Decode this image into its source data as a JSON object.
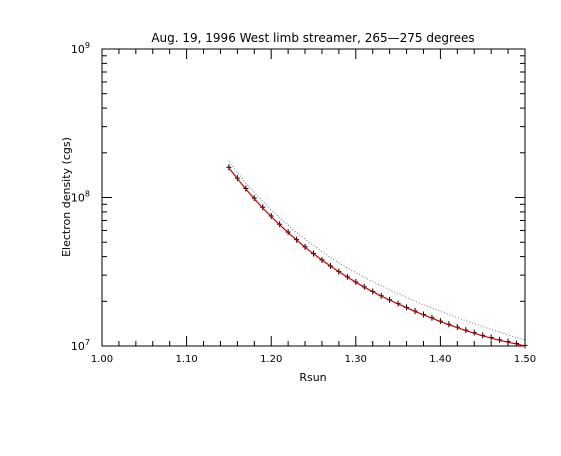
{
  "chart_data": {
    "type": "scatter",
    "title": "Aug. 19, 1996 West limb streamer, 265—275 degrees",
    "xlabel": "Rsun",
    "ylabel": "Electron density (cgs)",
    "xlim": [
      1.0,
      1.5
    ],
    "ylim": [
      10000000.0,
      1000000000.0
    ],
    "yscale": "log",
    "x_ticks": [
      {
        "value": 1.0,
        "label": "1.00"
      },
      {
        "value": 1.1,
        "label": "1.10"
      },
      {
        "value": 1.2,
        "label": "1.20"
      },
      {
        "value": 1.3,
        "label": "1.30"
      },
      {
        "value": 1.4,
        "label": "1.40"
      },
      {
        "value": 1.5,
        "label": "1.50"
      }
    ],
    "y_ticks": [
      {
        "value": 10000000.0,
        "base": "10",
        "exp": "7"
      },
      {
        "value": 100000000.0,
        "base": "10",
        "exp": "8"
      },
      {
        "value": 1000000000.0,
        "base": "10",
        "exp": "9"
      }
    ],
    "grid": false,
    "series": [
      {
        "color": "#000000",
        "marker": "plus",
        "x": [
          1.15,
          1.16,
          1.17,
          1.18,
          1.19,
          1.2,
          1.21,
          1.22,
          1.23,
          1.24,
          1.25,
          1.26,
          1.27,
          1.28,
          1.29,
          1.3,
          1.31,
          1.32,
          1.33,
          1.34,
          1.35,
          1.36,
          1.37,
          1.38,
          1.39,
          1.4,
          1.41,
          1.42,
          1.43,
          1.44,
          1.45,
          1.46,
          1.47,
          1.48,
          1.49,
          1.5
        ],
        "y": [
          160000000.0,
          135000000.0,
          115000000.0,
          99000000.0,
          86000000.0,
          75000000.0,
          66000000.0,
          58500000.0,
          52000000.0,
          46500000.0,
          42000000.0,
          38000000.0,
          34600000.0,
          31700000.0,
          29200000.0,
          27000000.0,
          25000000.0,
          23300000.0,
          21800000.0,
          20500000.0,
          19300000.0,
          18200000.0,
          17200000.0,
          16300000.0,
          15500000.0,
          14700000.0,
          14000000.0,
          13400000.0,
          12800000.0,
          12300000.0,
          11800000.0,
          11400000.0,
          11000000.0,
          10700000.0,
          10400000.0,
          10100000.0
        ]
      },
      {
        "color": "#cc0000",
        "marker": "line",
        "x": [
          1.15,
          1.16,
          1.17,
          1.18,
          1.19,
          1.2,
          1.21,
          1.22,
          1.23,
          1.24,
          1.25,
          1.26,
          1.27,
          1.28,
          1.29,
          1.3,
          1.31,
          1.32,
          1.33,
          1.34,
          1.35,
          1.36,
          1.37,
          1.38,
          1.39,
          1.4,
          1.41,
          1.42,
          1.43,
          1.44,
          1.45,
          1.46,
          1.47,
          1.48,
          1.49,
          1.5
        ],
        "y": [
          158000000.0,
          134000000.0,
          114000000.0,
          98000000.0,
          85000000.0,
          74500000.0,
          65500000.0,
          58000000.0,
          51700000.0,
          46300000.0,
          41800000.0,
          37900000.0,
          34500000.0,
          31600000.0,
          29100000.0,
          26900000.0,
          24900000.0,
          23200000.0,
          21700000.0,
          20400000.0,
          19200000.0,
          18100000.0,
          17100000.0,
          16200000.0,
          15400000.0,
          14600000.0,
          13900000.0,
          13300000.0,
          12700000.0,
          12200000.0,
          11700000.0,
          11300000.0,
          10900000.0,
          10600000.0,
          10300000.0,
          10000000.0
        ]
      },
      {
        "color": "#555555",
        "marker": "dotted",
        "x": [
          1.15,
          1.17,
          1.19,
          1.21,
          1.23,
          1.25,
          1.27,
          1.29,
          1.31,
          1.33,
          1.35,
          1.37,
          1.39,
          1.41,
          1.43,
          1.45,
          1.47,
          1.49,
          1.5
        ],
        "y": [
          175000000.0,
          125000000.0,
          94000000.0,
          73000000.0,
          58000000.0,
          47500000.0,
          39500000.0,
          33500000.0,
          29000000.0,
          25500000.0,
          22500000.0,
          20000000.0,
          18000000.0,
          16300000.0,
          14800000.0,
          13500000.0,
          12400000.0,
          11400000.0,
          11000000.0
        ]
      }
    ]
  }
}
